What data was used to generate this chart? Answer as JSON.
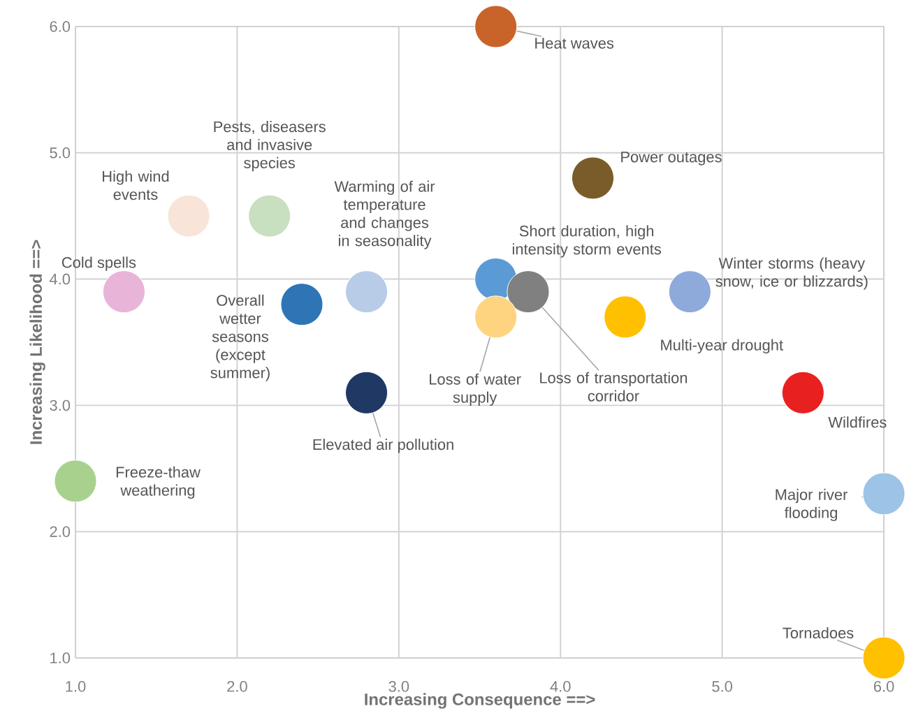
{
  "chart_data": {
    "type": "scatter",
    "xlabel": "Increasing Consequence ==>",
    "ylabel": "Increasing Likelihood ==>",
    "xlim": [
      1,
      6
    ],
    "ylim": [
      1,
      6
    ],
    "xticks": [
      {
        "value": 1,
        "label": "1.0"
      },
      {
        "value": 2,
        "label": "2.0"
      },
      {
        "value": 3,
        "label": "3.0"
      },
      {
        "value": 4,
        "label": "4.0"
      },
      {
        "value": 5,
        "label": "5.0"
      },
      {
        "value": 6,
        "label": "6.0"
      }
    ],
    "yticks": [
      {
        "value": 1,
        "label": "1.0"
      },
      {
        "value": 2,
        "label": "2.0"
      },
      {
        "value": 3,
        "label": "3.0"
      },
      {
        "value": 4,
        "label": "4.0"
      },
      {
        "value": 5,
        "label": "5.0"
      },
      {
        "value": 6,
        "label": "6.0"
      }
    ],
    "grid": true,
    "marker": "circle",
    "x": [
      3.6,
      4.2,
      2.2,
      1.7,
      2.8,
      1.3,
      2.4,
      3.6,
      3.8,
      3.6,
      4.4,
      4.8,
      2.8,
      5.5,
      1.0,
      6.0,
      6.0
    ],
    "values": [
      6.0,
      4.8,
      4.5,
      4.5,
      3.9,
      3.9,
      3.8,
      4.0,
      3.9,
      3.7,
      3.7,
      3.9,
      3.1,
      3.1,
      2.4,
      2.3,
      1.0
    ],
    "colors": [
      "#c8642a",
      "#7a5c2a",
      "#c8e0c0",
      "#f8e4d8",
      "#b8cce8",
      "#e8b4d8",
      "#2e75b6",
      "#5b9bd5",
      "#808080",
      "#ffd480",
      "#ffc000",
      "#8eaadb",
      "#1f3864",
      "#e82020",
      "#a9d18e",
      "#9dc3e6",
      "#ffc000"
    ],
    "annotations": [
      {
        "text": "Heat waves",
        "x": 3.6,
        "y": 6.0
      },
      {
        "text": "Power outages",
        "x": 4.2,
        "y": 4.8
      },
      {
        "text": "Pests, diseasers and invasive species",
        "x": 2.2,
        "y": 4.5
      },
      {
        "text": "High wind events",
        "x": 1.7,
        "y": 4.5
      },
      {
        "text": "Warming of air temperature and changes in seasonality",
        "x": 2.8,
        "y": 3.9
      },
      {
        "text": "Cold spells",
        "x": 1.3,
        "y": 3.9
      },
      {
        "text": "Overall wetter seasons (except summer)",
        "x": 2.4,
        "y": 3.8
      },
      {
        "text": "Short duration, high intensity storm events",
        "x": 3.6,
        "y": 4.0
      },
      {
        "text": "Loss of transportation corridor",
        "x": 3.8,
        "y": 3.9
      },
      {
        "text": "Loss of water supply",
        "x": 3.6,
        "y": 3.7
      },
      {
        "text": "Multi-year drought",
        "x": 4.4,
        "y": 3.7
      },
      {
        "text": "Winter storms (heavy snow, ice or blizzards)",
        "x": 4.8,
        "y": 3.9
      },
      {
        "text": "Elevated air pollution",
        "x": 2.8,
        "y": 3.1
      },
      {
        "text": "Wildfires",
        "x": 5.5,
        "y": 3.1
      },
      {
        "text": "Freeze-thaw weathering",
        "x": 1.0,
        "y": 2.4
      },
      {
        "text": "Major river flooding",
        "x": 6.0,
        "y": 2.3
      },
      {
        "text": "Tornadoes",
        "x": 6.0,
        "y": 1.0
      }
    ]
  }
}
